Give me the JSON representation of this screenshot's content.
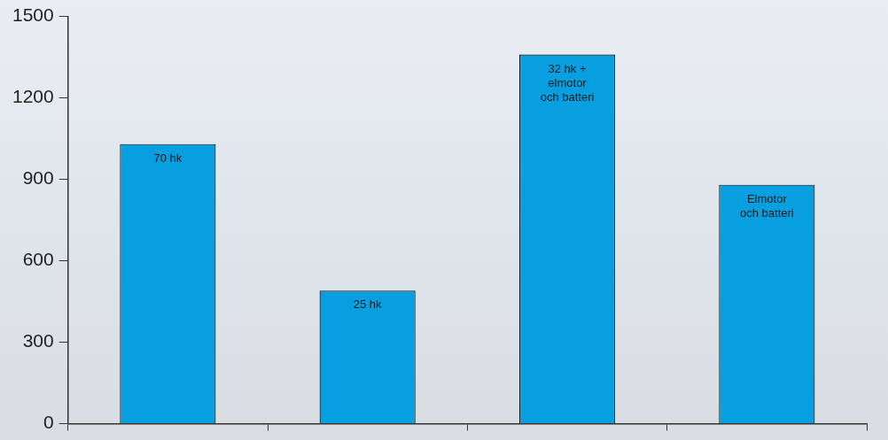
{
  "chart_data": {
    "type": "bar",
    "categories": [
      "70 hk",
      "25 hk",
      "32 hk +\nelmotor\noch batteri",
      "Elmotor\noch batteri"
    ],
    "values": [
      1030,
      490,
      1360,
      880
    ],
    "color": "#079fe0",
    "ylim": [
      0,
      1500
    ],
    "yticks": [
      0,
      300,
      600,
      900,
      1200,
      1500
    ],
    "grid": false,
    "tick_labels": "y"
  }
}
